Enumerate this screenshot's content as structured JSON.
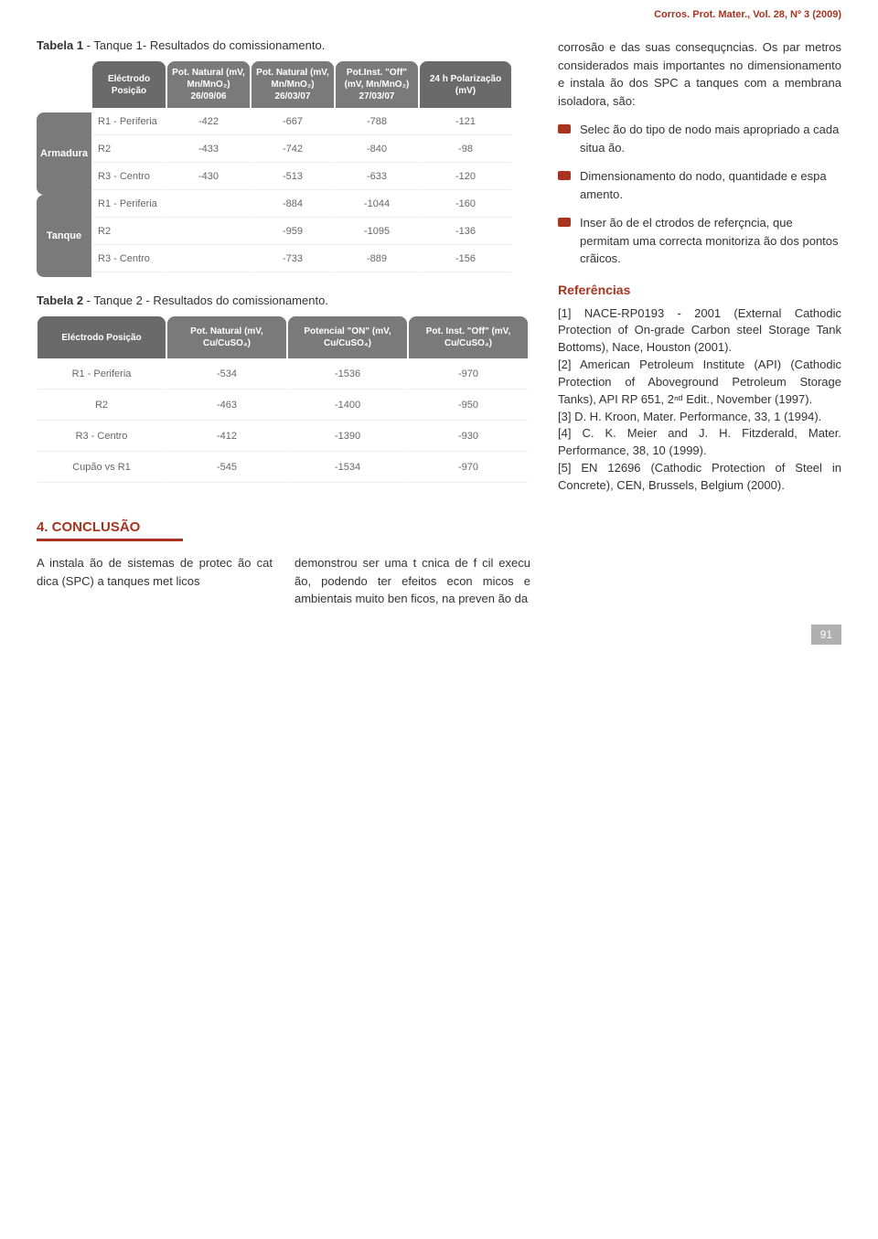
{
  "colors": {
    "accent": "#a8341f",
    "header_bg": "#7a7a7a",
    "header_bg_dark": "#6a6a6a",
    "text_body": "#333333",
    "text_cell": "#666666",
    "page_num_bg": "#b0b0b0"
  },
  "header_cite": "Corros. Prot. Mater., Vol. 28, Nº 3 (2009)",
  "table1": {
    "caption_bold": "Tabela 1",
    "caption_rest": " - Tanque 1- Resultados do comissionamento.",
    "side_labels": [
      "Armadura",
      "Tanque"
    ],
    "headers": [
      "Eléctrodo Posição",
      "Pot. Natural (mV, Mn/MnO₂) 26/09/06",
      "Pot. Natural (mV, Mn/MnO₂) 26/03/07",
      "Pot.Inst. \"Off\" (mV, Mn/MnO₂) 27/03/07",
      "24 h Polarização (mV)"
    ],
    "rows": [
      [
        "R1 - Periferia",
        "-422",
        "-667",
        "-788",
        "-121"
      ],
      [
        "R2",
        "-433",
        "-742",
        "-840",
        "-98"
      ],
      [
        "R3 - Centro",
        "-430",
        "-513",
        "-633",
        "-120"
      ],
      [
        "R1 - Periferia",
        "",
        "-884",
        "-1044",
        "-160"
      ],
      [
        "R2",
        "",
        "-959",
        "-1095",
        "-136"
      ],
      [
        "R3 - Centro",
        "",
        "-733",
        "-889",
        "-156"
      ]
    ]
  },
  "table2": {
    "caption_bold": "Tabela 2",
    "caption_rest": " - Tanque 2 - Resultados do comissionamento.",
    "headers": [
      "Eléctrodo Posição",
      "Pot. Natural (mV, Cu/CuSO₄)",
      "Potencial \"ON\" (mV, Cu/CuSO₄)",
      "Pot. Inst. \"Off\" (mV, Cu/CuSO₄)"
    ],
    "rows": [
      [
        "R1 - Periferia",
        "-534",
        "-1536",
        "-970"
      ],
      [
        "R2",
        "-463",
        "-1400",
        "-950"
      ],
      [
        "R3 - Centro",
        "-412",
        "-1390",
        "-930"
      ],
      [
        "Cupão vs R1",
        "-545",
        "-1534",
        "-970"
      ]
    ]
  },
  "conclusion": {
    "heading": "4. CONCLUSÃO",
    "left_text": "A instala ão de sistemas de protec ão cat dica (SPC) a tanques met licos",
    "right_text": "demonstrou ser uma t cnica de f cil execu ão, podendo ter efeitos econ micos e ambientais muito ben ficos, na preven ão da"
  },
  "sidebar": {
    "intro": "corrosão e das suas consequçncias. Os par metros considerados mais importantes no dimensionamento e instala ão dos SPC a tanques com a membrana isoladora, são:",
    "bullets": [
      "Selec ão do tipo de  nodo mais apropriado a cada situa ão.",
      "Dimensionamento do  nodo, quantidade e espa amento.",
      "Inser ão de el ctrodos de referçncia, que permitam uma correcta monitoriza ão dos pontos crãicos."
    ],
    "refs_heading": "Referências",
    "refs": [
      "[1] NACE-RP0193 - 2001 (External Cathodic Protection of On-grade Carbon steel Storage Tank Bottoms), Nace, Houston (2001).",
      "[2] American Petroleum Institute (API) (Cathodic Protection of Aboveground Petroleum Storage Tanks), API RP 651, 2ⁿᵈ Edit., November (1997).",
      "[3] D. H. Kroon, Mater. Performance, 33, 1 (1994).",
      "[4] C. K. Meier and J. H. Fitzderald, Mater. Performance, 38, 10 (1999).",
      "[5] EN 12696 (Cathodic Protection of Steel in Concrete), CEN, Brussels, Belgium (2000)."
    ]
  },
  "page_number": "91"
}
